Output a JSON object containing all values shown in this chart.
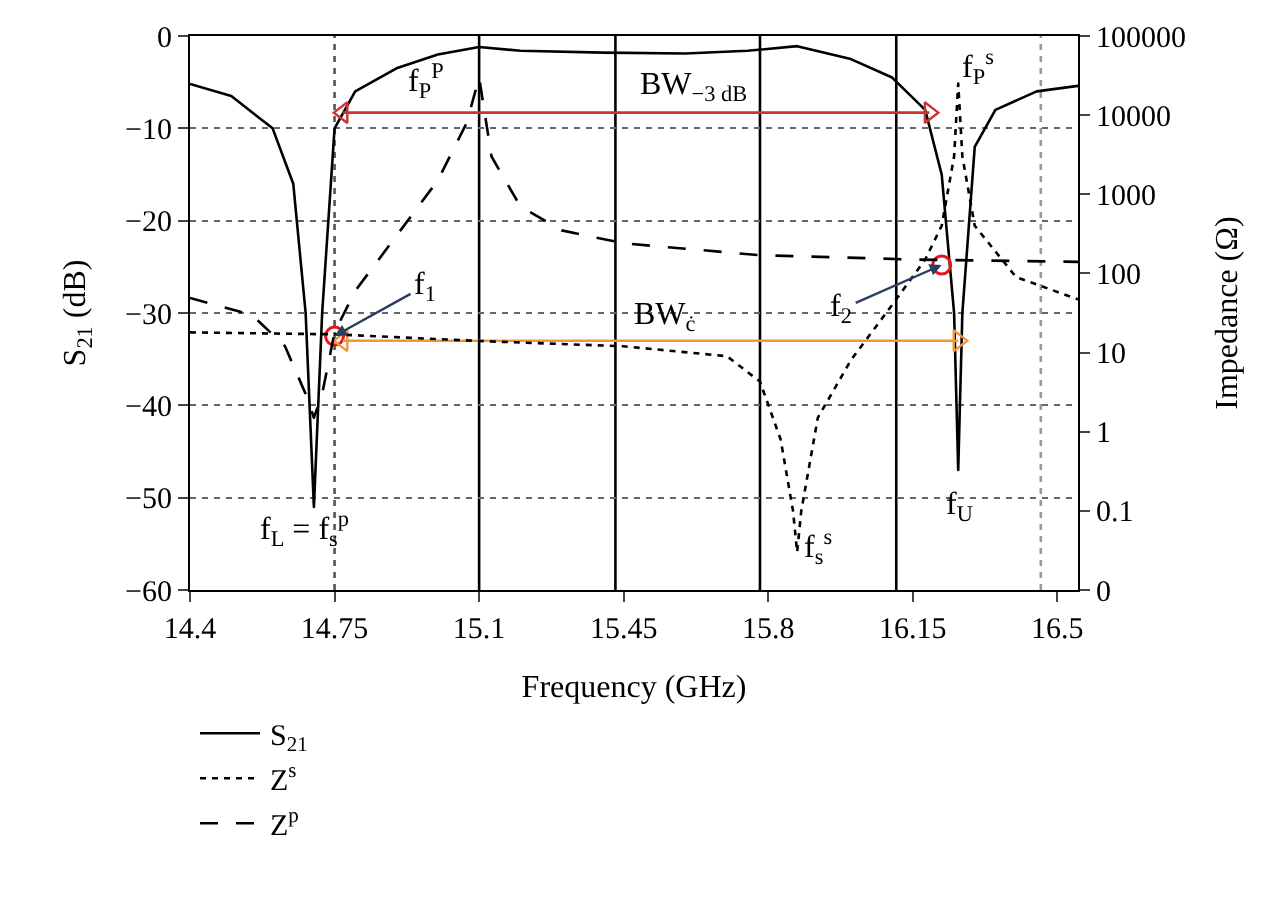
{
  "chart_data": {
    "type": "line",
    "xlabel": "Frequency (GHz)",
    "ylabel": "S$_{21}$ (dB)",
    "y2label": "Impedance (Ω)",
    "xlim": [
      14.4,
      16.55
    ],
    "xticks": [
      14.4,
      14.75,
      15.1,
      15.45,
      15.8,
      16.15,
      16.5
    ],
    "ylim": [
      -60,
      0
    ],
    "yticks": [
      -60,
      -50,
      -40,
      -30,
      -20,
      -10,
      0
    ],
    "y2lim": [
      0.01,
      100000
    ],
    "y2ticks": [
      {
        "value": 0.01,
        "label": "0"
      },
      0.1,
      1,
      10,
      100,
      1000,
      10000,
      100000
    ],
    "log": "y2",
    "grid": "y",
    "legend": "bottom left",
    "series": [
      {
        "name": "S$_{21}$",
        "color": "#000000",
        "line_style": "solid",
        "x": [
          14.4,
          14.5,
          14.6,
          14.65,
          14.68,
          14.7,
          14.72,
          14.75,
          14.8,
          14.9,
          15.0,
          15.1,
          15.2,
          15.4,
          15.6,
          15.75,
          15.87,
          16.0,
          16.1,
          16.18,
          16.22,
          16.25,
          16.26,
          16.27,
          16.3,
          16.35,
          16.45,
          16.55
        ],
        "values": [
          -5.2,
          -6.5,
          -10,
          -16,
          -30,
          -51,
          -30,
          -10,
          -6,
          -3.5,
          -2,
          -1.2,
          -1.6,
          -1.8,
          -1.9,
          -1.6,
          -1.1,
          -2.5,
          -4.5,
          -8,
          -15,
          -30,
          -47,
          -30,
          -12,
          -8,
          -6,
          -5.4
        ]
      },
      {
        "name": "Z$^{s}$",
        "color": "#000000",
        "line_style": "dotted",
        "axis": "y2",
        "x": [
          14.4,
          14.75,
          15.1,
          15.45,
          15.7,
          15.78,
          15.83,
          15.86,
          15.87,
          15.88,
          15.92,
          16.0,
          16.1,
          16.18,
          16.22,
          16.25,
          16.26,
          16.27,
          16.3,
          16.4,
          16.55
        ],
        "values": [
          18,
          17,
          14,
          12,
          9,
          4.3,
          0.8,
          0.1,
          0.03,
          0.1,
          1.5,
          8,
          40,
          150,
          400,
          3000,
          25000,
          3000,
          400,
          90,
          47
        ]
      },
      {
        "name": "Z$^{p}$",
        "color": "#000000",
        "line_style": "dashed",
        "axis": "y2",
        "x": [
          14.4,
          14.55,
          14.63,
          14.68,
          14.7,
          14.72,
          14.75,
          14.8,
          14.9,
          15.0,
          15.07,
          15.1,
          15.13,
          15.2,
          15.3,
          15.45,
          15.78,
          16.15,
          16.55
        ],
        "values": [
          49,
          30,
          12,
          3,
          1.5,
          3,
          18,
          60,
          300,
          1500,
          8000,
          30000,
          3000,
          700,
          350,
          240,
          170,
          150,
          140
        ]
      },
      {
        "type": "scatter",
        "marker": "circle",
        "color": "#e8141b",
        "x": [
          14.75,
          16.22
        ],
        "values": [
          -32.5,
          -24.8
        ]
      },
      {
        "color": "#cc3333",
        "marker": "triangle",
        "line_style": "solid",
        "x": [
          14.77,
          16.19
        ],
        "values": [
          -8.3,
          -8.3
        ]
      },
      {
        "color": "#f0973a",
        "marker": "triangle",
        "line_style": "solid",
        "x": [
          14.77,
          16.26
        ],
        "values": [
          -33,
          -33
        ]
      }
    ],
    "ref_lines": [
      {
        "axis": "x",
        "value": 15.1,
        "color": "#000000",
        "line_style": "solid"
      },
      {
        "axis": "x",
        "value": 15.43,
        "color": "#000000",
        "line_style": "solid"
      },
      {
        "axis": "x",
        "value": 15.78,
        "color": "#000000",
        "line_style": "solid"
      },
      {
        "axis": "x",
        "value": 16.11,
        "color": "#000000",
        "line_style": "solid"
      },
      {
        "axis": "x",
        "value": 14.75,
        "color": "#555555",
        "line_style": "dotted"
      },
      {
        "axis": "x",
        "value": 16.46,
        "color": "#999999",
        "line_style": "dotted"
      }
    ],
    "annotations": [
      "f$_{P}$$^{P}$",
      "BW$_{−3 dB}$",
      "f$_{P}$$^{s}$",
      {
        "text": "f$_{1}$",
        "x": 14.75,
        "y": -32.5
      },
      "BW$_{ċ}$",
      {
        "text": "f$_{2}$",
        "x": 16.22,
        "y": -24.8
      },
      "f$_{L}$ = f$_{s}$$^{p}$",
      "f$_{s}$$^{s}$",
      "f$_{U}$"
    ]
  }
}
